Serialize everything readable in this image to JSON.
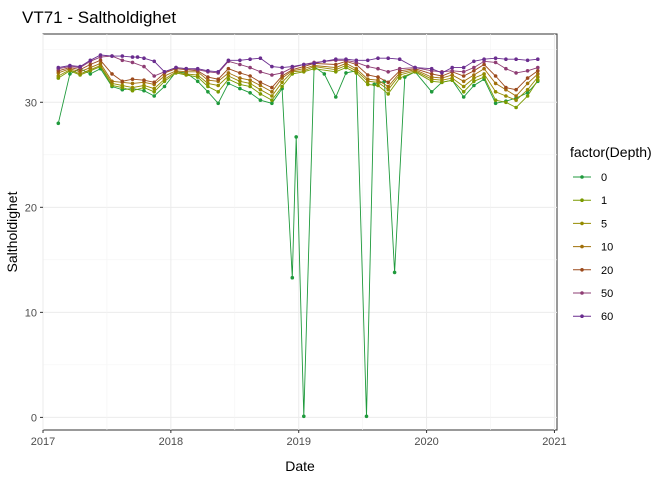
{
  "chart_data": {
    "type": "line",
    "title": "VT71  -  Saltholdighet",
    "xlabel": "Date",
    "ylabel": "Saltholdighet",
    "x_ticks": [
      "2017",
      "2018",
      "2019",
      "2020",
      "2021"
    ],
    "y_ticks": [
      "0",
      "10",
      "20",
      "30"
    ],
    "xlim": [
      2017.0,
      2021.02
    ],
    "ylim": [
      -1.2,
      36.5
    ],
    "grid": true,
    "legend": {
      "title": "factor(Depth)",
      "position": "right"
    },
    "series": [
      {
        "name": "0",
        "color": "#1f9a3c",
        "x": [
          2017.12,
          2017.21,
          2017.29,
          2017.37,
          2017.45,
          2017.54,
          2017.62,
          2017.7,
          2017.79,
          2017.87,
          2017.95,
          2018.04,
          2018.12,
          2018.21,
          2018.29,
          2018.37,
          2018.45,
          2018.54,
          2018.62,
          2018.7,
          2018.79,
          2018.87,
          2018.95,
          2018.98,
          2019.04,
          2019.12,
          2019.2,
          2019.29,
          2019.37,
          2019.45,
          2019.53,
          2019.59,
          2019.67,
          2019.75,
          2019.83,
          2019.91,
          2020.04,
          2020.12,
          2020.2,
          2020.29,
          2020.37,
          2020.45,
          2020.54,
          2020.62,
          2020.7,
          2020.79,
          2020.87
        ],
        "y": [
          28.0,
          32.7,
          33.2,
          32.7,
          33.2,
          31.5,
          31.2,
          31.3,
          31.1,
          30.6,
          31.5,
          32.9,
          32.8,
          32.0,
          31.0,
          29.9,
          31.8,
          31.3,
          30.9,
          30.2,
          29.9,
          31.3,
          13.3,
          26.7,
          0.1,
          33.4,
          32.7,
          30.5,
          32.8,
          33.0,
          0.1,
          31.7,
          32.0,
          13.8,
          32.4,
          32.9,
          31.0,
          31.9,
          32.1,
          30.5,
          31.6,
          32.2,
          29.9,
          30.1,
          30.4,
          30.9,
          32.0
        ]
      },
      {
        "name": "1",
        "color": "#7a9a00",
        "x": [
          2017.12,
          2017.21,
          2017.29,
          2017.37,
          2017.45,
          2017.54,
          2017.62,
          2017.7,
          2017.79,
          2017.87,
          2017.95,
          2018.04,
          2018.12,
          2018.21,
          2018.29,
          2018.37,
          2018.45,
          2018.54,
          2018.62,
          2018.7,
          2018.79,
          2018.87,
          2018.95,
          2019.04,
          2019.12,
          2019.29,
          2019.37,
          2019.45,
          2019.54,
          2019.62,
          2019.7,
          2019.79,
          2019.91,
          2020.04,
          2020.12,
          2020.2,
          2020.29,
          2020.37,
          2020.45,
          2020.54,
          2020.62,
          2020.7,
          2020.79,
          2020.87
        ],
        "y": [
          32.3,
          33.0,
          32.6,
          33.0,
          33.4,
          31.6,
          31.4,
          31.1,
          31.4,
          31.0,
          32.0,
          32.8,
          32.6,
          32.4,
          31.5,
          31.0,
          32.2,
          31.7,
          31.5,
          30.8,
          30.2,
          31.5,
          32.7,
          32.9,
          33.2,
          32.9,
          33.3,
          32.8,
          31.7,
          31.6,
          30.8,
          32.3,
          32.9,
          32.0,
          31.9,
          32.1,
          31.0,
          32.0,
          32.4,
          30.2,
          30.0,
          29.5,
          30.6,
          32.1
        ]
      },
      {
        "name": "5",
        "color": "#948b00",
        "x": [
          2017.12,
          2017.21,
          2017.29,
          2017.37,
          2017.45,
          2017.54,
          2017.62,
          2017.7,
          2017.79,
          2017.87,
          2017.95,
          2018.04,
          2018.12,
          2018.21,
          2018.29,
          2018.37,
          2018.45,
          2018.54,
          2018.62,
          2018.7,
          2018.79,
          2018.87,
          2018.95,
          2019.04,
          2019.12,
          2019.29,
          2019.37,
          2019.45,
          2019.54,
          2019.62,
          2019.7,
          2019.79,
          2019.91,
          2020.04,
          2020.12,
          2020.2,
          2020.29,
          2020.37,
          2020.45,
          2020.54,
          2020.62,
          2020.7,
          2020.79,
          2020.87
        ],
        "y": [
          32.5,
          33.1,
          32.7,
          33.1,
          33.5,
          31.8,
          31.6,
          31.4,
          31.6,
          31.3,
          32.2,
          32.9,
          32.7,
          32.6,
          31.8,
          31.6,
          32.5,
          32.0,
          31.8,
          31.2,
          30.6,
          31.9,
          32.9,
          33.0,
          33.4,
          33.1,
          33.5,
          33.0,
          32.0,
          31.9,
          31.2,
          32.6,
          33.0,
          32.2,
          32.1,
          32.3,
          31.5,
          32.3,
          32.7,
          31.0,
          30.6,
          30.2,
          31.2,
          32.4
        ]
      },
      {
        "name": "10",
        "color": "#a1700a",
        "x": [
          2017.12,
          2017.21,
          2017.29,
          2017.37,
          2017.45,
          2017.54,
          2017.62,
          2017.7,
          2017.79,
          2017.87,
          2017.95,
          2018.04,
          2018.12,
          2018.21,
          2018.29,
          2018.37,
          2018.45,
          2018.54,
          2018.62,
          2018.7,
          2018.79,
          2018.87,
          2018.95,
          2019.04,
          2019.12,
          2019.29,
          2019.37,
          2019.45,
          2019.54,
          2019.62,
          2019.7,
          2019.79,
          2019.91,
          2020.04,
          2020.12,
          2020.2,
          2020.29,
          2020.37,
          2020.45,
          2020.54,
          2020.62,
          2020.7,
          2020.79,
          2020.87
        ],
        "y": [
          32.8,
          33.2,
          32.9,
          33.3,
          33.7,
          32.0,
          31.9,
          31.8,
          31.9,
          31.7,
          32.5,
          33.0,
          32.9,
          32.9,
          32.1,
          32.0,
          32.8,
          32.3,
          32.1,
          31.6,
          31.0,
          32.3,
          33.0,
          33.2,
          33.5,
          33.3,
          33.7,
          33.2,
          32.2,
          32.1,
          31.5,
          32.8,
          33.1,
          32.4,
          32.3,
          32.6,
          32.0,
          32.6,
          33.2,
          31.8,
          31.2,
          30.6,
          31.8,
          32.7
        ]
      },
      {
        "name": "20",
        "color": "#9c4a1c",
        "x": [
          2017.12,
          2017.21,
          2017.29,
          2017.37,
          2017.45,
          2017.54,
          2017.62,
          2017.7,
          2017.79,
          2017.87,
          2017.95,
          2018.04,
          2018.12,
          2018.21,
          2018.29,
          2018.37,
          2018.45,
          2018.54,
          2018.62,
          2018.7,
          2018.79,
          2018.87,
          2018.95,
          2019.04,
          2019.12,
          2019.29,
          2019.37,
          2019.45,
          2019.54,
          2019.62,
          2019.7,
          2019.79,
          2019.91,
          2020.04,
          2020.12,
          2020.2,
          2020.29,
          2020.37,
          2020.45,
          2020.54,
          2020.62,
          2020.7,
          2020.79,
          2020.87
        ],
        "y": [
          33.0,
          33.3,
          33.1,
          33.6,
          34.0,
          32.7,
          32.0,
          32.2,
          32.1,
          31.9,
          32.8,
          33.2,
          33.1,
          33.0,
          32.4,
          32.2,
          33.2,
          32.8,
          32.5,
          31.9,
          31.4,
          32.5,
          33.1,
          33.4,
          33.7,
          33.6,
          33.9,
          33.6,
          32.6,
          32.4,
          31.9,
          33.0,
          33.2,
          32.7,
          32.5,
          32.9,
          32.5,
          33.0,
          33.6,
          32.5,
          31.4,
          31.2,
          32.3,
          33.0
        ]
      },
      {
        "name": "50",
        "color": "#8e3c73",
        "x": [
          2017.12,
          2017.21,
          2017.29,
          2017.37,
          2017.45,
          2017.54,
          2017.62,
          2017.7,
          2017.79,
          2017.87,
          2017.95,
          2018.04,
          2018.12,
          2018.21,
          2018.29,
          2018.37,
          2018.45,
          2018.54,
          2018.62,
          2018.7,
          2018.79,
          2018.87,
          2018.95,
          2019.04,
          2019.12,
          2019.29,
          2019.37,
          2019.45,
          2019.54,
          2019.62,
          2019.7,
          2019.79,
          2019.91,
          2020.04,
          2020.12,
          2020.2,
          2020.29,
          2020.37,
          2020.45,
          2020.54,
          2020.62,
          2020.7,
          2020.79,
          2020.87
        ],
        "y": [
          33.2,
          33.4,
          33.3,
          33.9,
          34.3,
          34.4,
          34.0,
          33.8,
          33.4,
          32.5,
          32.9,
          33.3,
          33.2,
          33.1,
          32.9,
          32.8,
          33.9,
          33.6,
          33.3,
          32.9,
          32.6,
          32.8,
          33.3,
          33.6,
          33.8,
          34.0,
          34.0,
          33.8,
          33.4,
          33.2,
          32.9,
          33.2,
          33.3,
          33.0,
          32.9,
          33.0,
          32.9,
          33.3,
          33.9,
          33.8,
          33.2,
          32.8,
          33.0,
          33.3
        ]
      },
      {
        "name": "60",
        "color": "#6a2d8f",
        "x": [
          2017.12,
          2017.21,
          2017.29,
          2017.37,
          2017.45,
          2017.54,
          2017.62,
          2017.7,
          2017.74,
          2017.79,
          2017.87,
          2017.95,
          2018.04,
          2018.12,
          2018.21,
          2018.29,
          2018.37,
          2018.45,
          2018.54,
          2018.62,
          2018.7,
          2018.79,
          2018.87,
          2018.95,
          2019.04,
          2019.12,
          2019.2,
          2019.29,
          2019.37,
          2019.45,
          2019.54,
          2019.62,
          2019.7,
          2019.79,
          2019.91,
          2020.04,
          2020.12,
          2020.2,
          2020.29,
          2020.37,
          2020.45,
          2020.54,
          2020.62,
          2020.7,
          2020.79,
          2020.87
        ],
        "y": [
          33.3,
          33.5,
          33.4,
          34.0,
          34.5,
          34.4,
          34.4,
          34.3,
          34.3,
          34.2,
          33.9,
          32.9,
          33.3,
          33.2,
          33.2,
          33.0,
          32.9,
          34.0,
          34.0,
          34.1,
          34.2,
          33.4,
          33.3,
          33.4,
          33.6,
          33.7,
          33.9,
          34.1,
          34.1,
          34.0,
          34.0,
          34.2,
          34.2,
          34.1,
          33.3,
          33.2,
          32.8,
          33.3,
          33.3,
          33.9,
          34.1,
          34.2,
          34.1,
          34.1,
          34.0,
          34.1
        ]
      }
    ]
  }
}
